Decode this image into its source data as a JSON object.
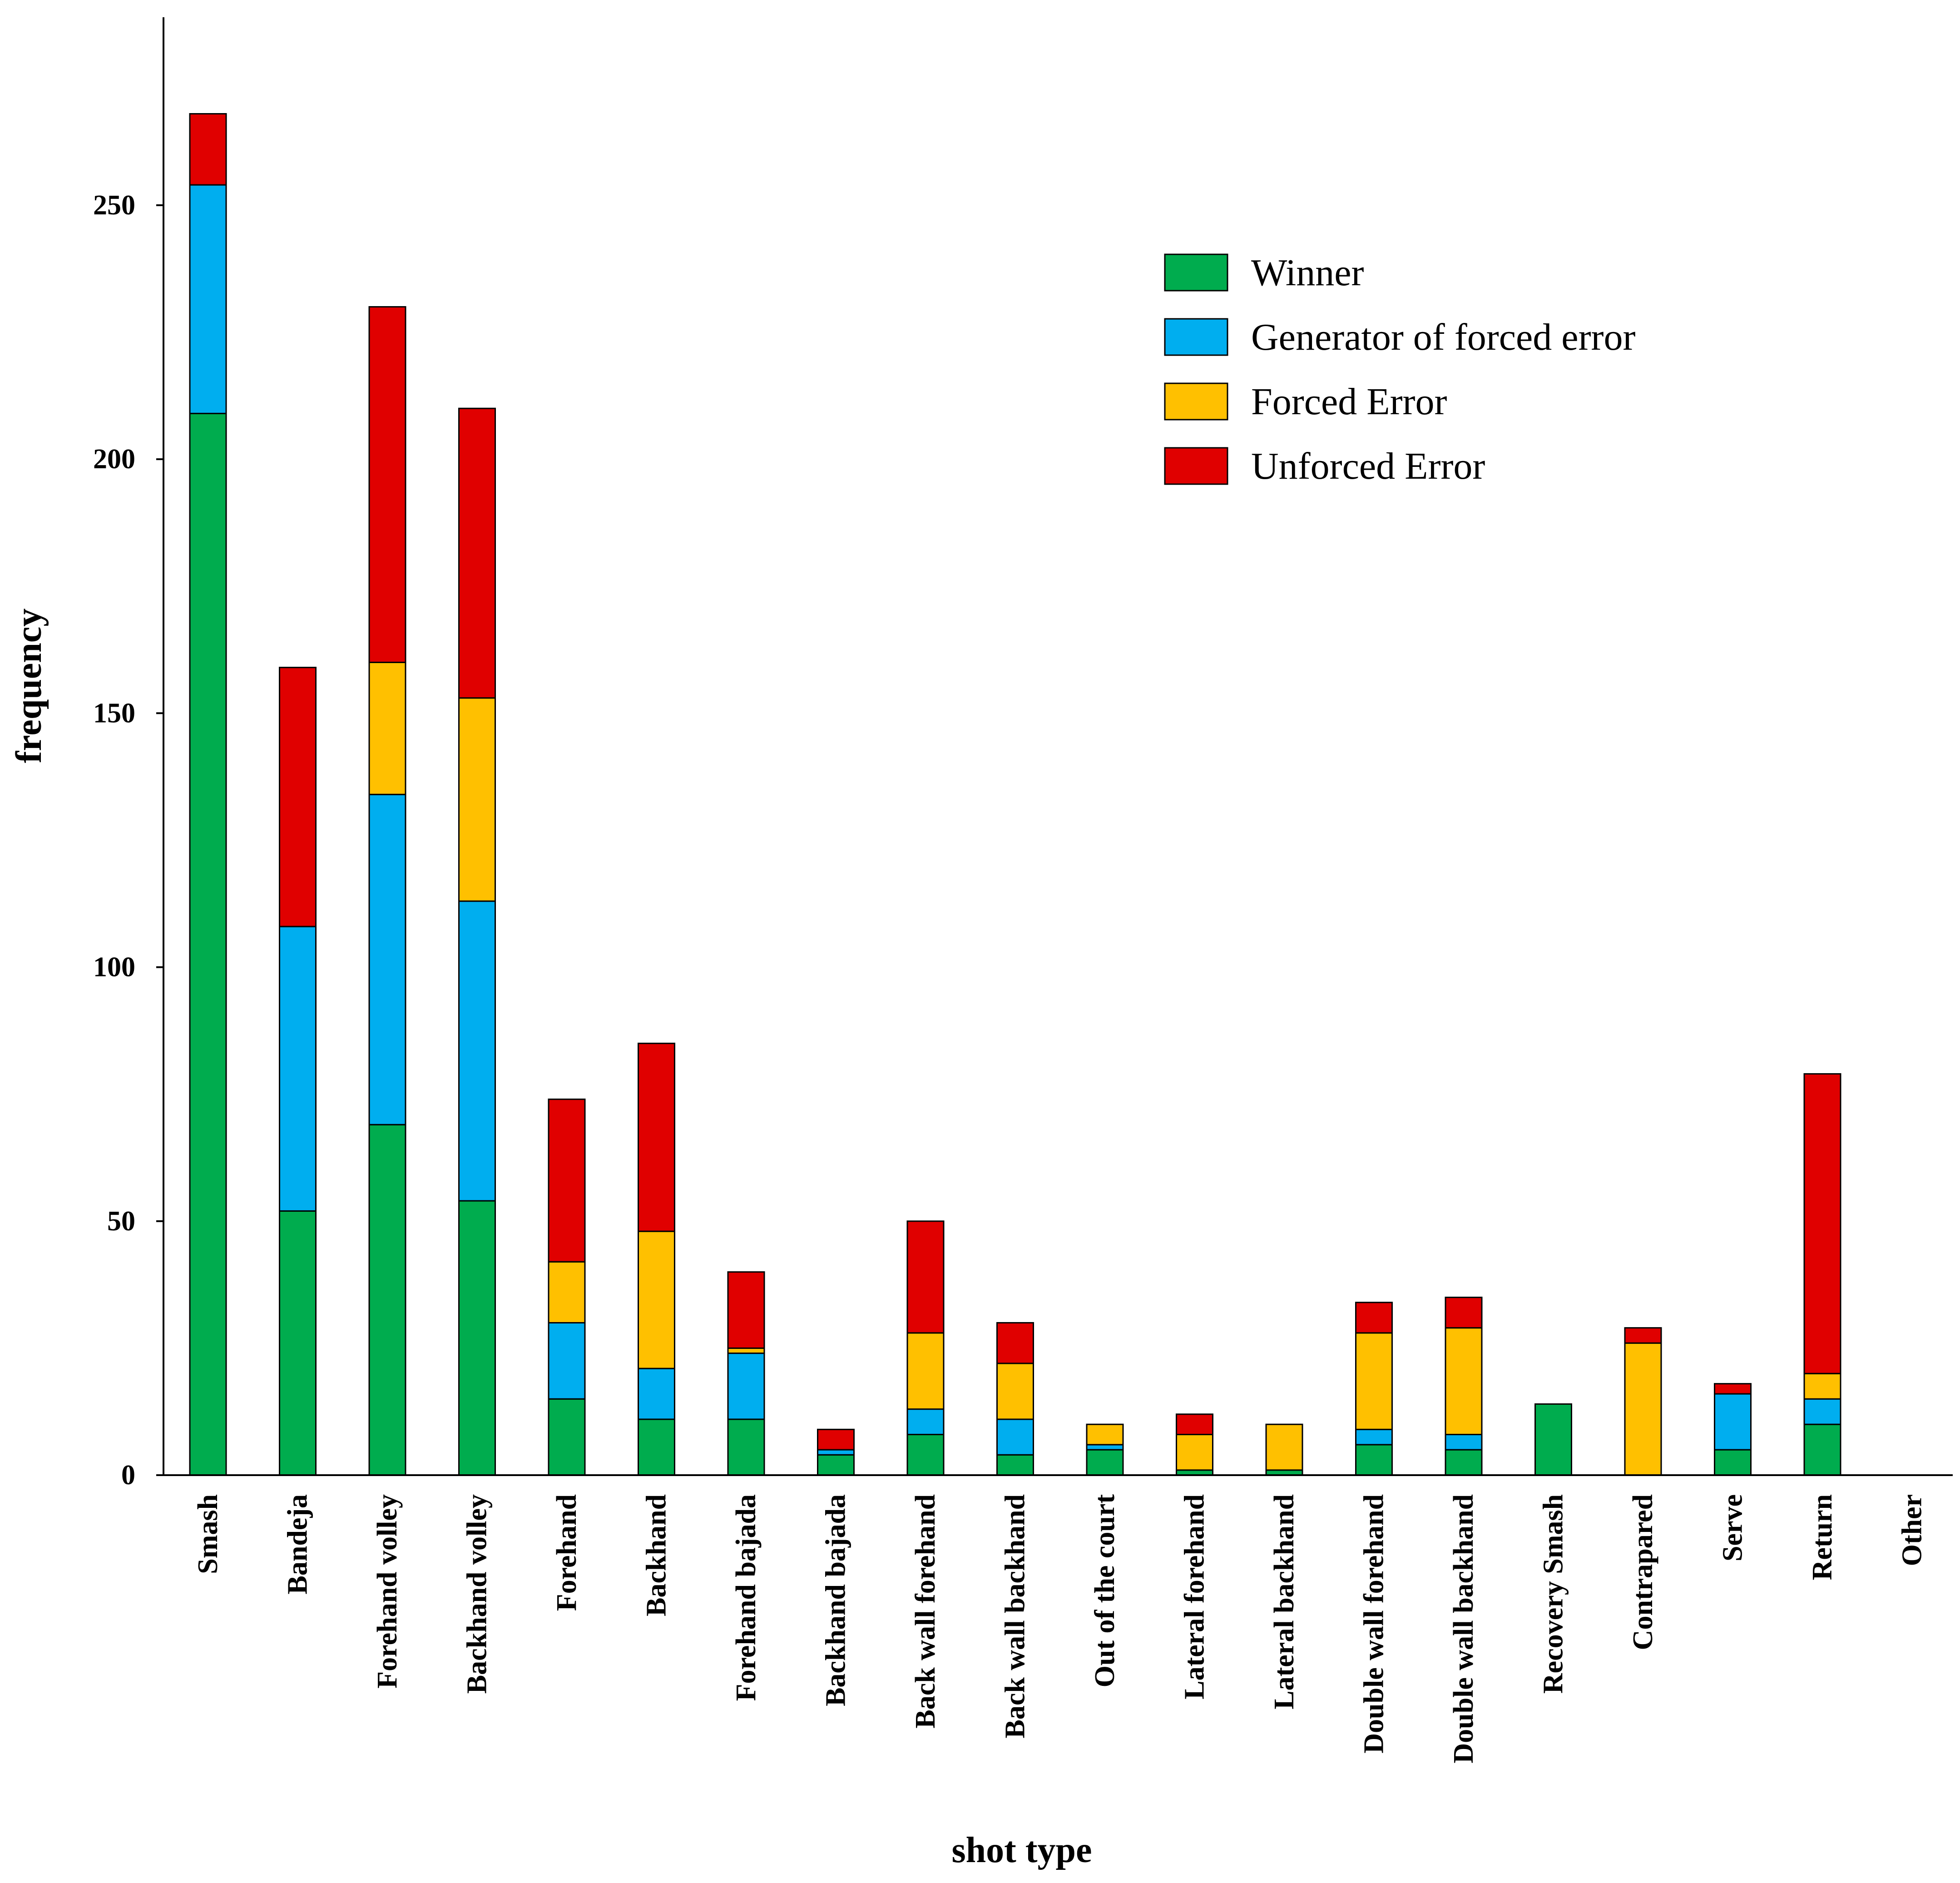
{
  "chart_data": {
    "type": "bar",
    "stacked": true,
    "title": "",
    "xlabel": "shot type",
    "ylabel": "frequency",
    "ylim": [
      0,
      287
    ],
    "yticks": [
      0,
      50,
      100,
      150,
      200,
      250
    ],
    "legend_position": "top-right",
    "categories": [
      "Smash",
      "Bandeja",
      "Forehand volley",
      "Backhand volley",
      "Forehand",
      "Backhand",
      "Forehand bajada",
      "Backhand bajada",
      "Back wall forehand",
      "Back wall backhand",
      "Out of the court",
      "Lateral forehand",
      "Lateral backhand",
      "Double wall forehand",
      "Double wall backhand",
      "Recovery Smash",
      "Contrapared",
      "Serve",
      "Return",
      "Other"
    ],
    "series": [
      {
        "name": "Winner",
        "color": "#00AC4E",
        "values": [
          209,
          52,
          69,
          54,
          15,
          11,
          11,
          4,
          8,
          4,
          5,
          1,
          1,
          6,
          5,
          14,
          0,
          5,
          10,
          0
        ]
      },
      {
        "name": "Generator of forced error",
        "color": "#00AEEF",
        "values": [
          45,
          56,
          65,
          59,
          15,
          10,
          13,
          1,
          5,
          7,
          1,
          0,
          0,
          3,
          3,
          0,
          0,
          11,
          5,
          0
        ]
      },
      {
        "name": "Forced Error",
        "color": "#FFC000",
        "values": [
          0,
          0,
          26,
          40,
          12,
          27,
          1,
          0,
          15,
          11,
          4,
          7,
          9,
          19,
          21,
          0,
          26,
          0,
          5,
          0
        ]
      },
      {
        "name": "Unforced Error",
        "color": "#E00000",
        "values": [
          14,
          51,
          70,
          57,
          32,
          37,
          15,
          4,
          22,
          8,
          0,
          4,
          0,
          6,
          6,
          0,
          3,
          2,
          59,
          0
        ]
      }
    ]
  }
}
